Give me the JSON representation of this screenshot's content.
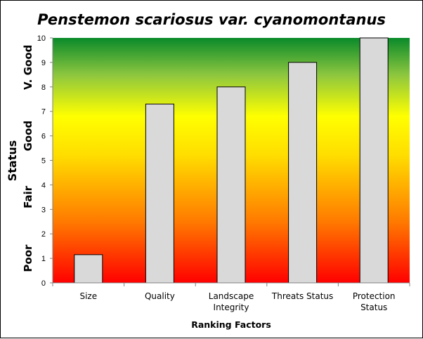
{
  "chart_data": {
    "type": "bar",
    "title": "Penstemon scariosus var. cyanomontanus",
    "xlabel": "Ranking Factors",
    "ylabel": "Status",
    "categories": [
      [
        "Size"
      ],
      [
        "Quality"
      ],
      [
        "Landscape",
        "Integrity"
      ],
      [
        "Threats Status"
      ],
      [
        "Protection",
        "Status"
      ]
    ],
    "values": [
      1.15,
      7.3,
      8,
      9,
      10
    ],
    "ylim": [
      0,
      10
    ],
    "yticks": [
      "0",
      "1",
      "2",
      "3",
      "4",
      "5",
      "6",
      "7",
      "8",
      "9",
      "10"
    ],
    "status_bands": [
      {
        "label": "Poor",
        "center": 1
      },
      {
        "label": "Fair",
        "center": 3.5
      },
      {
        "label": "Good",
        "center": 6
      },
      {
        "label": "V. Good",
        "center": 8.8
      }
    ],
    "bar_color": "#d9d9d9",
    "background_gradient": [
      "#ff0000",
      "#ff9900",
      "#ffff00",
      "#00b050",
      "#008000"
    ]
  }
}
